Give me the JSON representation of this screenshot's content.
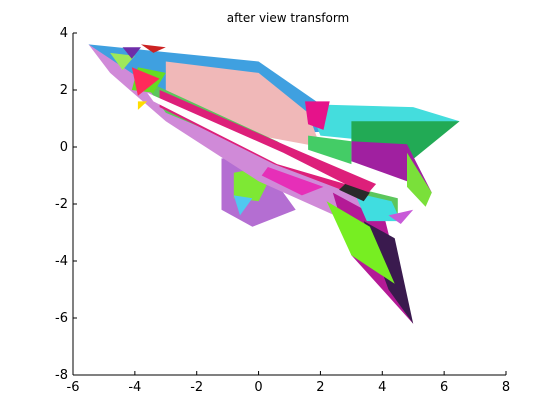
{
  "chart_data": {
    "type": "patch",
    "title": "after view transform",
    "xlabel": "",
    "ylabel": "",
    "xlim": [
      -6,
      8
    ],
    "ylim": [
      -8,
      4
    ],
    "x_ticks": [
      -6,
      -4,
      -2,
      0,
      2,
      4,
      6,
      8
    ],
    "y_ticks": [
      4,
      2,
      0,
      -2,
      -4,
      -6,
      -8
    ],
    "x_tick_labels": [
      "-6",
      "-4",
      "-2",
      "0",
      "2",
      "4",
      "6",
      "8"
    ],
    "y_tick_labels": [
      "4",
      "2",
      "0",
      "-2",
      "-4",
      "-6",
      "-8"
    ],
    "box": "off",
    "patches": [
      {
        "color": "#3fa0e0",
        "pts": [
          [
            -5.5,
            3.6
          ],
          [
            0,
            3
          ],
          [
            2,
            1.5
          ],
          [
            3,
            0.6
          ],
          [
            0,
            0.4
          ],
          [
            -3,
            1.2
          ]
        ]
      },
      {
        "color": "#f0b8b8",
        "pts": [
          [
            -3,
            3
          ],
          [
            0,
            2.6
          ],
          [
            1.6,
            1.2
          ],
          [
            2,
            0
          ],
          [
            -1,
            0.6
          ],
          [
            -3,
            1.6
          ]
        ]
      },
      {
        "color": "#44dddd",
        "pts": [
          [
            1.6,
            1.5
          ],
          [
            5,
            1.4
          ],
          [
            6.5,
            0.9
          ],
          [
            4.8,
            0.1
          ],
          [
            2,
            0.4
          ]
        ]
      },
      {
        "color": "#e6128a",
        "pts": [
          [
            1.5,
            1.6
          ],
          [
            2.3,
            1.6
          ],
          [
            2.1,
            0.6
          ],
          [
            1.6,
            0.8
          ]
        ]
      },
      {
        "color": "#22aa55",
        "pts": [
          [
            3,
            0.9
          ],
          [
            6.5,
            0.9
          ],
          [
            4.8,
            -0.6
          ],
          [
            3,
            -0.5
          ]
        ]
      },
      {
        "color": "#a020a0",
        "pts": [
          [
            3,
            0.2
          ],
          [
            4.8,
            0.1
          ],
          [
            5.6,
            -1.6
          ],
          [
            4.8,
            -1.2
          ],
          [
            3,
            -0.5
          ]
        ]
      },
      {
        "color": "#b46ed2",
        "pts": [
          [
            -1.2,
            -0.4
          ],
          [
            0,
            -0.4
          ],
          [
            1.2,
            -2.2
          ],
          [
            -0.2,
            -2.8
          ],
          [
            -1.2,
            -2.2
          ]
        ]
      },
      {
        "color": "#7ee834",
        "pts": [
          [
            -0.8,
            -0.9
          ],
          [
            0.6,
            -0.6
          ],
          [
            0,
            -1.9
          ],
          [
            -0.8,
            -1.8
          ]
        ]
      },
      {
        "color": "#d08ad8",
        "pts": [
          [
            -5.5,
            3.6
          ],
          [
            -3,
            1.8
          ],
          [
            1.5,
            -0.6
          ],
          [
            4.5,
            -2.4
          ],
          [
            3.5,
            -2.9
          ],
          [
            0,
            -1.2
          ],
          [
            -3,
            0.9
          ],
          [
            -4.8,
            2.6
          ]
        ]
      },
      {
        "color": "#5cc65c",
        "pts": [
          [
            -3.8,
            2.4
          ],
          [
            0.6,
            0.2
          ],
          [
            3,
            -1.4
          ],
          [
            4.5,
            -1.8
          ],
          [
            4.5,
            -2.4
          ],
          [
            1,
            -0.6
          ],
          [
            -3,
            1.2
          ]
        ]
      },
      {
        "color": "#dd1f7a",
        "pts": [
          [
            -3.2,
            2
          ],
          [
            1,
            0
          ],
          [
            3.8,
            -1.3
          ],
          [
            3.4,
            -1.8
          ],
          [
            0.5,
            -0.6
          ],
          [
            -3.2,
            1.4
          ]
        ]
      },
      {
        "color": "#ffffff",
        "pts": [
          [
            -3.6,
            1.9
          ],
          [
            0.8,
            -0.2
          ],
          [
            2.8,
            -1.3
          ],
          [
            0.6,
            -0.6
          ],
          [
            -3.4,
            1.6
          ]
        ]
      },
      {
        "color": "#66dd22",
        "pts": [
          [
            -3.9,
            2.8
          ],
          [
            -3,
            2.6
          ],
          [
            -3.4,
            1.9
          ],
          [
            -4.1,
            2
          ]
        ]
      },
      {
        "color": "#ff2a5a",
        "pts": [
          [
            -4.1,
            2.8
          ],
          [
            -3.2,
            2.4
          ],
          [
            -3.9,
            1.8
          ]
        ]
      },
      {
        "color": "#b41a96",
        "pts": [
          [
            2.4,
            -1.6
          ],
          [
            4.1,
            -2.6
          ],
          [
            4.7,
            -5.2
          ],
          [
            5,
            -6.2
          ],
          [
            3,
            -3.8
          ]
        ]
      },
      {
        "color": "#3a1a4e",
        "pts": [
          [
            3.4,
            -2.6
          ],
          [
            4.4,
            -3.2
          ],
          [
            5,
            -6.2
          ],
          [
            4.2,
            -5
          ]
        ]
      },
      {
        "color": "#77ee22",
        "pts": [
          [
            2.2,
            -1.9
          ],
          [
            3.6,
            -2.8
          ],
          [
            4.4,
            -4.8
          ],
          [
            3,
            -3.8
          ]
        ]
      },
      {
        "color": "#40dde0",
        "pts": [
          [
            3.1,
            -1.6
          ],
          [
            4.3,
            -1.9
          ],
          [
            4.6,
            -2.6
          ],
          [
            3.5,
            -2.6
          ]
        ]
      },
      {
        "color": "#44cc66",
        "pts": [
          [
            1.6,
            0.4
          ],
          [
            3,
            0.2
          ],
          [
            3,
            -0.6
          ],
          [
            1.6,
            -0.1
          ]
        ]
      },
      {
        "color": "#7ae03a",
        "pts": [
          [
            4.8,
            -0.2
          ],
          [
            5.6,
            -1.6
          ],
          [
            5.4,
            -2.1
          ],
          [
            4.8,
            -1.4
          ]
        ]
      },
      {
        "color": "#2a2a2a",
        "pts": [
          [
            2.8,
            -1.3
          ],
          [
            3.6,
            -1.6
          ],
          [
            3.4,
            -1.9
          ],
          [
            2.6,
            -1.5
          ]
        ]
      },
      {
        "color": "#ffdd00",
        "pts": [
          [
            -3.9,
            1.6
          ],
          [
            -3.6,
            1.6
          ],
          [
            -3.9,
            1.3
          ]
        ]
      },
      {
        "color": "#50c8f0",
        "pts": [
          [
            -0.8,
            -1.7
          ],
          [
            -0.2,
            -1.8
          ],
          [
            -0.6,
            -2.4
          ]
        ]
      },
      {
        "color": "#e62fb8",
        "pts": [
          [
            0.3,
            -0.7
          ],
          [
            2.1,
            -1.4
          ],
          [
            1.4,
            -1.7
          ],
          [
            0.1,
            -1
          ]
        ]
      },
      {
        "color": "#9ee85a",
        "pts": [
          [
            -4.8,
            3.3
          ],
          [
            -4,
            3.2
          ],
          [
            -4.4,
            2.7
          ]
        ]
      },
      {
        "color": "#6e2da8",
        "pts": [
          [
            -4.4,
            3.5
          ],
          [
            -3.8,
            3.5
          ],
          [
            -4.1,
            3.1
          ]
        ]
      },
      {
        "color": "#cc2222",
        "pts": [
          [
            -3.8,
            3.6
          ],
          [
            -3,
            3.5
          ],
          [
            -3.4,
            3.3
          ]
        ]
      },
      {
        "color": "#c85ad8",
        "pts": [
          [
            4.2,
            -2.4
          ],
          [
            5,
            -2.2
          ],
          [
            4.6,
            -2.7
          ]
        ]
      }
    ]
  }
}
